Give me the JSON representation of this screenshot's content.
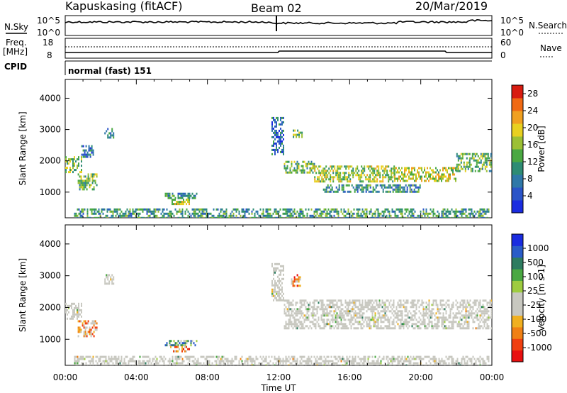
{
  "header": {
    "station": "Kapuskasing (fitACF)",
    "beam": "Beam 02",
    "date": "20/Mar/2019"
  },
  "status_panel": {
    "nsky_label": "N.Sky",
    "nsky_ticks": [
      "10^5",
      "10^0"
    ],
    "nsearch_label": "N.Search",
    "nsearch_ticks": [
      "10^5",
      "10^0"
    ],
    "freq_label_1": "Freq.",
    "freq_label_2": "[MHz]",
    "freq_ticks": [
      "18",
      "8"
    ],
    "nave_label": "Nave",
    "nave_ticks": [
      "60",
      "0"
    ],
    "cpid_label": "CPID",
    "cpid_value": "normal (fast) 151"
  },
  "chart_data": [
    {
      "type": "heatmap",
      "parameter": "Power",
      "ylabel": "Slant Range [km]",
      "xlabel": "Time UT",
      "x_ticks": [
        "00:00",
        "04:00",
        "08:00",
        "12:00",
        "16:00",
        "20:00",
        "00:00"
      ],
      "xlim_hours": [
        0,
        24
      ],
      "ylim_km": [
        180,
        4600
      ],
      "y_ticks": [
        1000,
        2000,
        3000,
        4000
      ],
      "colorbar": {
        "label": "Power [dB]",
        "range": [
          0,
          30
        ],
        "ticks": [
          "4",
          "8",
          "12",
          "16",
          "20",
          "24",
          "28"
        ],
        "colors": [
          "#1a2ce0",
          "#2a54c8",
          "#2f78a8",
          "#2e8c74",
          "#4aa842",
          "#9cc034",
          "#e8d020",
          "#f0a020",
          "#f06a14",
          "#d81c10"
        ]
      },
      "regions": [
        {
          "t0": 0.0,
          "t1": 0.9,
          "r0": 1650,
          "r1": 2150,
          "level": 0.5
        },
        {
          "t0": 0.9,
          "t1": 1.6,
          "r0": 2150,
          "r1": 2500,
          "level": 0.25
        },
        {
          "t0": 0.7,
          "t1": 1.8,
          "r0": 1100,
          "r1": 1600,
          "level": 0.45
        },
        {
          "t0": 2.2,
          "t1": 2.7,
          "r0": 2750,
          "r1": 3050,
          "level": 0.3
        },
        {
          "t0": 5.6,
          "t1": 7.4,
          "r0": 820,
          "r1": 980,
          "level": 0.3
        },
        {
          "t0": 5.9,
          "t1": 7.0,
          "r0": 640,
          "r1": 790,
          "level": 0.62
        },
        {
          "t0": 0.5,
          "t1": 23.8,
          "r0": 200,
          "r1": 480,
          "level": 0.35
        },
        {
          "t0": 11.6,
          "t1": 12.3,
          "r0": 2200,
          "r1": 3400,
          "level": 0.2
        },
        {
          "t0": 12.3,
          "t1": 14.0,
          "r0": 1600,
          "r1": 2000,
          "level": 0.45
        },
        {
          "t0": 12.8,
          "t1": 13.3,
          "r0": 2750,
          "r1": 3000,
          "level": 0.5
        },
        {
          "t0": 14.0,
          "t1": 18.5,
          "r0": 1350,
          "r1": 1850,
          "level": 0.55
        },
        {
          "t0": 18.5,
          "t1": 22.0,
          "r0": 1350,
          "r1": 1800,
          "level": 0.6
        },
        {
          "t0": 22.0,
          "t1": 24.0,
          "r0": 1700,
          "r1": 2250,
          "level": 0.45
        },
        {
          "t0": 14.5,
          "t1": 20.0,
          "r0": 1000,
          "r1": 1250,
          "level": 0.3
        }
      ]
    },
    {
      "type": "heatmap",
      "parameter": "Velocity",
      "ylabel": "Slant Range [km]",
      "xlabel": "Time UT",
      "x_ticks": [
        "00:00",
        "04:00",
        "08:00",
        "12:00",
        "16:00",
        "20:00",
        "00:00"
      ],
      "xlim_hours": [
        0,
        24
      ],
      "ylim_km": [
        180,
        4600
      ],
      "y_ticks": [
        1000,
        2000,
        3000,
        4000
      ],
      "colorbar": {
        "label": "Velocity [m s-1]",
        "ticks": [
          "1000",
          "500",
          "100",
          "25",
          "-25",
          "-100",
          "-500",
          "-1000"
        ],
        "colors": [
          "#1a2ce0",
          "#2a5cc8",
          "#2e7c60",
          "#4aa842",
          "#9ecc40",
          "#c8c8c0",
          "#c8c8c0",
          "#f0b020",
          "#f08014",
          "#f04010",
          "#e81010"
        ]
      },
      "regions": [
        {
          "t0": 0.0,
          "t1": 0.9,
          "r0": 1650,
          "r1": 2150,
          "level": 0.45
        },
        {
          "t0": 0.7,
          "t1": 1.8,
          "r0": 1100,
          "r1": 1600,
          "level": 0.7
        },
        {
          "t0": 2.2,
          "t1": 2.7,
          "r0": 2750,
          "r1": 3050,
          "level": 0.45
        },
        {
          "t0": 5.6,
          "t1": 7.4,
          "r0": 820,
          "r1": 980,
          "level": 0.3
        },
        {
          "t0": 5.9,
          "t1": 7.0,
          "r0": 640,
          "r1": 790,
          "level": 0.75
        },
        {
          "t0": 0.5,
          "t1": 23.8,
          "r0": 200,
          "r1": 480,
          "level": 0.5
        },
        {
          "t0": 11.6,
          "t1": 12.3,
          "r0": 2200,
          "r1": 3400,
          "level": 0.45
        },
        {
          "t0": 12.7,
          "t1": 13.2,
          "r0": 2700,
          "r1": 3050,
          "level": 0.75
        },
        {
          "t0": 12.3,
          "t1": 24.0,
          "r0": 1350,
          "r1": 2250,
          "level": 0.46
        }
      ]
    }
  ]
}
